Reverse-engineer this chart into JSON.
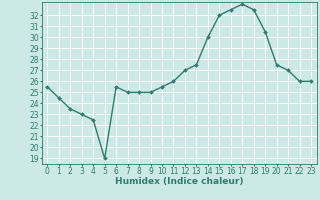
{
  "x": [
    0,
    1,
    2,
    3,
    4,
    5,
    6,
    7,
    8,
    9,
    10,
    11,
    12,
    13,
    14,
    15,
    16,
    17,
    18,
    19,
    20,
    21,
    22,
    23
  ],
  "y": [
    25.5,
    24.5,
    23.5,
    23.0,
    22.5,
    19.0,
    25.5,
    25.0,
    25.0,
    25.0,
    25.5,
    26.0,
    27.0,
    27.5,
    30.0,
    32.0,
    32.5,
    33.0,
    32.5,
    30.5,
    27.5,
    27.0,
    26.0,
    26.0
  ],
  "line_color": "#2e7d6e",
  "marker": "D",
  "marker_size": 2.0,
  "bg_color": "#cce9e8",
  "grid_color": "#ffffff",
  "axis_color": "#2e7d6e",
  "xlabel": "Humidex (Indice chaleur)",
  "xlim": [
    -0.5,
    23.5
  ],
  "ylim": [
    18.5,
    33.2
  ],
  "yticks": [
    19,
    20,
    21,
    22,
    23,
    24,
    25,
    26,
    27,
    28,
    29,
    30,
    31,
    32
  ],
  "xticks": [
    0,
    1,
    2,
    3,
    4,
    5,
    6,
    7,
    8,
    9,
    10,
    11,
    12,
    13,
    14,
    15,
    16,
    17,
    18,
    19,
    20,
    21,
    22,
    23
  ],
  "tick_fontsize": 5.5,
  "xlabel_fontsize": 6.5,
  "linewidth": 1.0
}
